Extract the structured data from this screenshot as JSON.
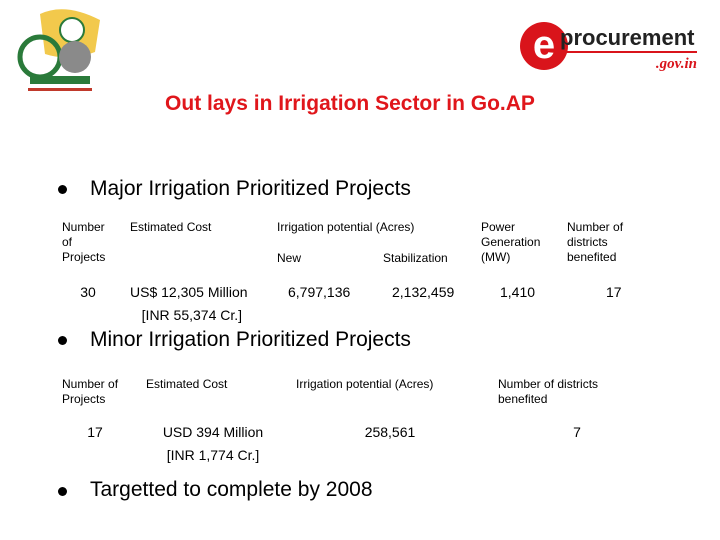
{
  "header": {
    "logo_letter": "e",
    "logo_word": "procurement",
    "logo_domain": ".gov.in"
  },
  "title": "Out lays in Irrigation Sector in Go.AP",
  "bullets": [
    "Major Irrigation Prioritized Projects",
    "Minor Irrigation Prioritized Projects",
    "Targetted to complete by 2008"
  ],
  "major_table": {
    "headers": [
      "Number\nof\nProjects",
      "Estimated Cost",
      "Irrigation potential (Acres)",
      "Power\nGeneration\n(MW)",
      "Number of\ndistricts\nbenefited"
    ],
    "subheaders": [
      "New",
      "Stabilization"
    ],
    "row": [
      "30",
      "US$ 12,305 Million\n   [INR 55,374 Cr.]",
      "6,797,136",
      "2,132,459",
      "1,410",
      "17"
    ]
  },
  "minor_table": {
    "headers": [
      "Number of\nProjects",
      "Estimated Cost",
      "Irrigation potential (Acres)",
      "Number of districts\nbenefited"
    ],
    "row": [
      "17",
      "USD 394 Million\n[INR 1,774 Cr.]",
      "258,561",
      "7"
    ]
  }
}
